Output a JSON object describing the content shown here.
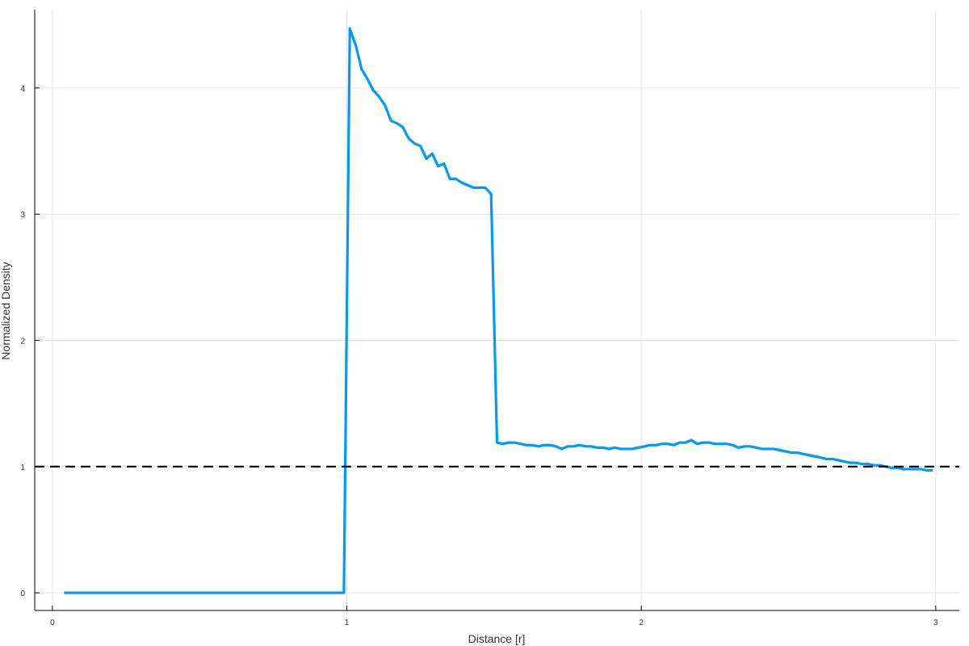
{
  "chart_data": {
    "type": "line",
    "title": "",
    "xlabel": "Distance [r]",
    "ylabel": "Normalized Density",
    "xlim": [
      -0.06,
      3.08
    ],
    "ylim": [
      -0.14,
      4.62
    ],
    "xticks": [
      0,
      1,
      2,
      3
    ],
    "yticks": [
      0,
      1,
      2,
      3,
      4
    ],
    "grid": true,
    "legend": "none",
    "series": [
      {
        "color": "#009AF9",
        "style": "solid",
        "x": [
          0.04,
          0.99,
          1.01,
          1.03,
          1.05,
          1.07,
          1.09,
          1.11,
          1.13,
          1.15,
          1.17,
          1.19,
          1.21,
          1.23,
          1.25,
          1.27,
          1.29,
          1.31,
          1.33,
          1.35,
          1.37,
          1.39,
          1.41,
          1.43,
          1.45,
          1.47,
          1.49,
          1.51,
          1.53,
          1.55,
          1.57,
          1.59,
          1.61,
          1.63,
          1.65,
          1.67,
          1.69,
          1.71,
          1.73,
          1.75,
          1.77,
          1.79,
          1.81,
          1.83,
          1.85,
          1.87,
          1.89,
          1.91,
          1.93,
          1.95,
          1.97,
          1.99,
          2.01,
          2.03,
          2.05,
          2.07,
          2.09,
          2.11,
          2.13,
          2.15,
          2.17,
          2.19,
          2.21,
          2.23,
          2.25,
          2.27,
          2.29,
          2.31,
          2.33,
          2.35,
          2.37,
          2.39,
          2.41,
          2.43,
          2.45,
          2.47,
          2.49,
          2.51,
          2.53,
          2.55,
          2.57,
          2.59,
          2.61,
          2.63,
          2.65,
          2.67,
          2.69,
          2.71,
          2.73,
          2.75,
          2.77,
          2.79,
          2.81,
          2.83,
          2.85,
          2.87,
          2.89,
          2.91,
          2.93,
          2.95,
          2.97,
          2.99
        ],
        "y": [
          0.0,
          0.0,
          4.47,
          4.34,
          4.15,
          4.07,
          3.98,
          3.93,
          3.86,
          3.74,
          3.72,
          3.69,
          3.6,
          3.56,
          3.54,
          3.44,
          3.48,
          3.38,
          3.4,
          3.28,
          3.28,
          3.25,
          3.23,
          3.21,
          3.21,
          3.21,
          3.16,
          1.19,
          1.18,
          1.19,
          1.19,
          1.18,
          1.17,
          1.17,
          1.16,
          1.17,
          1.17,
          1.16,
          1.14,
          1.16,
          1.16,
          1.17,
          1.16,
          1.16,
          1.15,
          1.15,
          1.14,
          1.15,
          1.14,
          1.14,
          1.14,
          1.15,
          1.16,
          1.17,
          1.17,
          1.18,
          1.18,
          1.17,
          1.19,
          1.19,
          1.21,
          1.18,
          1.19,
          1.19,
          1.18,
          1.18,
          1.18,
          1.17,
          1.15,
          1.16,
          1.16,
          1.15,
          1.14,
          1.14,
          1.14,
          1.13,
          1.12,
          1.11,
          1.11,
          1.1,
          1.09,
          1.08,
          1.07,
          1.06,
          1.06,
          1.05,
          1.04,
          1.03,
          1.03,
          1.02,
          1.02,
          1.01,
          1.01,
          1.0,
          0.99,
          0.99,
          0.98,
          0.98,
          0.98,
          0.98,
          0.97,
          0.97
        ]
      },
      {
        "color": "#000000",
        "style": "dashed",
        "x": [
          -0.06,
          3.08
        ],
        "y": [
          1.0,
          1.0
        ]
      }
    ]
  }
}
